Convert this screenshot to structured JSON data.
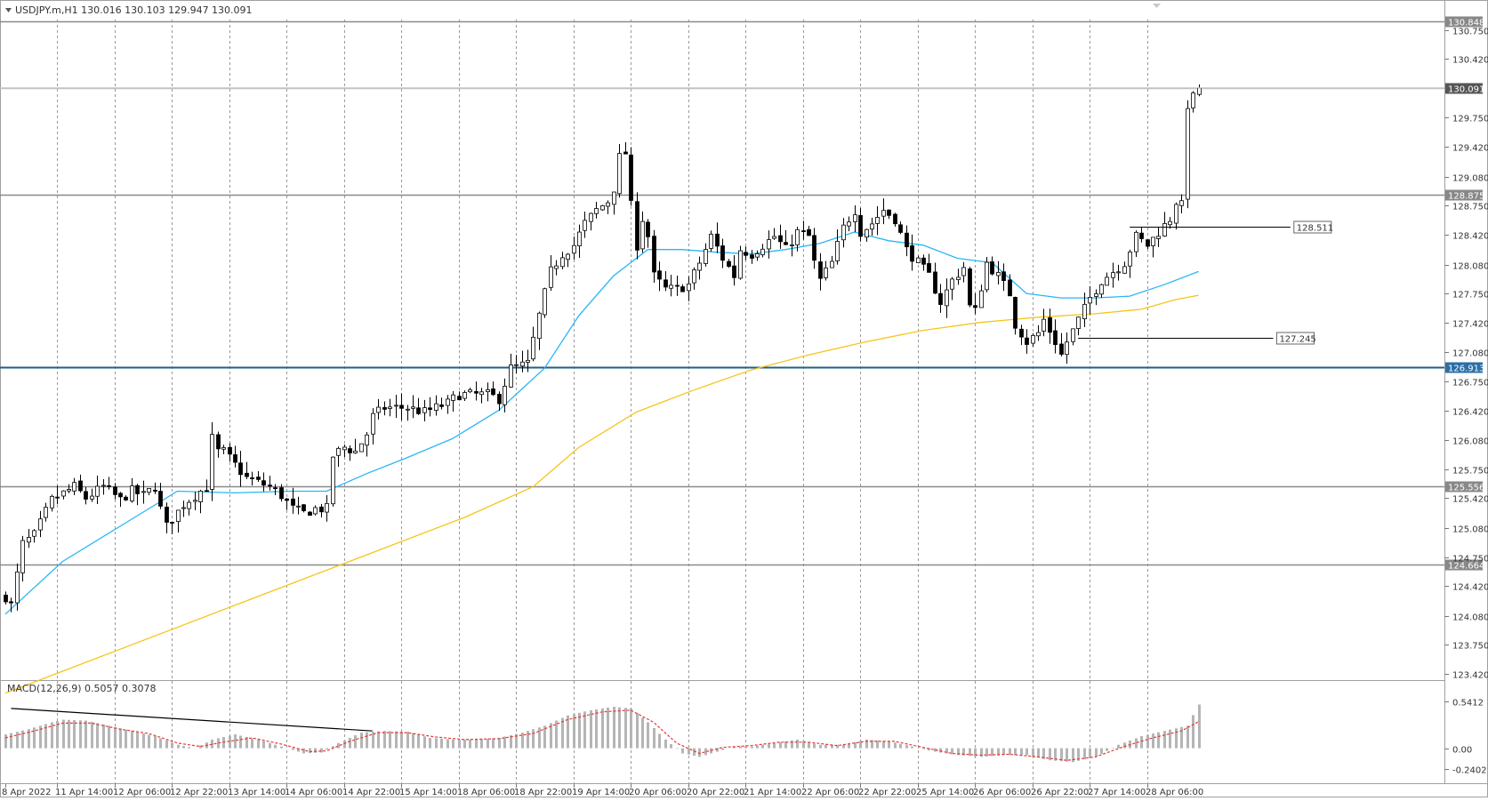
{
  "window": {
    "symbol_line": "USDJPY.m,H1  130.016 130.103 129.947 130.091",
    "collapse_icon": "triangle-down-icon"
  },
  "chart_data": [
    {
      "type": "candlestick",
      "title": "USDJPY.m,H1  130.016 130.103 129.947 130.091",
      "ylim": [
        123.42,
        130.848
      ],
      "y_tick_labels": [
        "130.750",
        "130.420",
        "129.750",
        "129.420",
        "129.080",
        "128.750",
        "128.420",
        "128.080",
        "127.750",
        "127.420",
        "127.080",
        "126.750",
        "126.420",
        "126.080",
        "125.750",
        "125.420",
        "125.080",
        "124.750",
        "124.420",
        "124.080",
        "123.750",
        "123.420"
      ],
      "x_tick_labels": [
        "8 Apr 2022",
        "11 Apr 14:00",
        "12 Apr 06:00",
        "12 Apr 22:00",
        "13 Apr 14:00",
        "14 Apr 06:00",
        "14 Apr 22:00",
        "15 Apr 14:00",
        "18 Apr 06:00",
        "18 Apr 22:00",
        "19 Apr 14:00",
        "20 Apr 06:00",
        "20 Apr 22:00",
        "21 Apr 14:00",
        "22 Apr 06:00",
        "22 Apr 22:00",
        "25 Apr 14:00",
        "26 Apr 06:00",
        "26 Apr 22:00",
        "27 Apr 14:00",
        "28 Apr 06:00"
      ],
      "grid": true,
      "price_path": [
        [
          0,
          124.3
        ],
        [
          1,
          124.2
        ],
        [
          3,
          124.9
        ],
        [
          5,
          125.0
        ],
        [
          8,
          125.4
        ],
        [
          12,
          125.55
        ],
        [
          14,
          125.42
        ],
        [
          17,
          125.55
        ],
        [
          20,
          125.4
        ],
        [
          22,
          125.5
        ],
        [
          24,
          125.45
        ],
        [
          26,
          125.55
        ],
        [
          27,
          125.3
        ],
        [
          28,
          125.1
        ],
        [
          31,
          125.35
        ],
        [
          34,
          125.5
        ],
        [
          35,
          125.55
        ],
        [
          36,
          126.1
        ],
        [
          37,
          125.95
        ],
        [
          38,
          125.95
        ],
        [
          40,
          125.8
        ],
        [
          42,
          125.65
        ],
        [
          44,
          125.6
        ],
        [
          46,
          125.55
        ],
        [
          48,
          125.45
        ],
        [
          50,
          125.3
        ],
        [
          52,
          125.25
        ],
        [
          54,
          125.3
        ],
        [
          56,
          125.3
        ],
        [
          57,
          125.9
        ],
        [
          59,
          126.0
        ],
        [
          61,
          125.95
        ],
        [
          63,
          126.15
        ],
        [
          64,
          126.35
        ],
        [
          66,
          126.45
        ],
        [
          70,
          126.45
        ],
        [
          73,
          126.4
        ],
        [
          75,
          126.45
        ],
        [
          77,
          126.5
        ],
        [
          79,
          126.6
        ],
        [
          81,
          126.6
        ],
        [
          84,
          126.6
        ],
        [
          86,
          126.55
        ],
        [
          88,
          126.9
        ],
        [
          91,
          126.95
        ],
        [
          93,
          127.5
        ],
        [
          95,
          128.0
        ],
        [
          97,
          128.2
        ],
        [
          99,
          128.3
        ],
        [
          101,
          128.55
        ],
        [
          103,
          128.7
        ],
        [
          105,
          128.8
        ],
        [
          106,
          128.95
        ],
        [
          107,
          129.3
        ],
        [
          108,
          129.35
        ],
        [
          109,
          128.75
        ],
        [
          110,
          128.3
        ],
        [
          111,
          128.6
        ],
        [
          112,
          128.4
        ],
        [
          113,
          127.95
        ],
        [
          115,
          127.8
        ],
        [
          117,
          127.8
        ],
        [
          119,
          127.85
        ],
        [
          121,
          128.1
        ],
        [
          123,
          128.4
        ],
        [
          125,
          128.15
        ],
        [
          127,
          127.95
        ],
        [
          128,
          128.25
        ],
        [
          130,
          128.2
        ],
        [
          132,
          128.3
        ],
        [
          134,
          128.4
        ],
        [
          136,
          128.25
        ],
        [
          138,
          128.45
        ],
        [
          140,
          128.4
        ],
        [
          141,
          128.1
        ],
        [
          142,
          127.9
        ],
        [
          144,
          128.1
        ],
        [
          146,
          128.5
        ],
        [
          148,
          128.7
        ],
        [
          149,
          128.45
        ],
        [
          151,
          128.55
        ],
        [
          153,
          128.7
        ],
        [
          155,
          128.6
        ],
        [
          157,
          128.25
        ],
        [
          159,
          128.1
        ],
        [
          161,
          127.95
        ],
        [
          163,
          127.65
        ],
        [
          165,
          127.9
        ],
        [
          167,
          128.05
        ],
        [
          168,
          127.6
        ],
        [
          169,
          127.55
        ],
        [
          171,
          128.1
        ],
        [
          173,
          127.95
        ],
        [
          175,
          127.75
        ],
        [
          176,
          127.4
        ],
        [
          178,
          127.2
        ],
        [
          180,
          127.3
        ],
        [
          181,
          127.45
        ],
        [
          183,
          127.2
        ],
        [
          184,
          127.05
        ],
        [
          185,
          127.2
        ],
        [
          187,
          127.45
        ],
        [
          189,
          127.7
        ],
        [
          191,
          127.9
        ],
        [
          193,
          128.0
        ],
        [
          195,
          128.1
        ],
        [
          197,
          128.4
        ],
        [
          199,
          128.3
        ],
        [
          201,
          128.45
        ],
        [
          203,
          128.6
        ],
        [
          204,
          128.8
        ],
        [
          205,
          128.75
        ],
        [
          206,
          129.9
        ],
        [
          207,
          129.98
        ],
        [
          208,
          130.091
        ]
      ],
      "series": [
        {
          "values": [],
          "color": "#29B6F6",
          "path": [
            [
              0,
              124.1
            ],
            [
              10,
              124.7
            ],
            [
              20,
              125.1
            ],
            [
              30,
              125.5
            ],
            [
              40,
              125.48
            ],
            [
              50,
              125.5
            ],
            [
              56,
              125.5
            ],
            [
              63,
              125.7
            ],
            [
              70,
              125.88
            ],
            [
              78,
              126.1
            ],
            [
              86,
              126.42
            ],
            [
              94,
              126.9
            ],
            [
              100,
              127.5
            ],
            [
              106,
              127.95
            ],
            [
              112,
              128.25
            ],
            [
              118,
              128.25
            ],
            [
              124,
              128.22
            ],
            [
              130,
              128.2
            ],
            [
              136,
              128.25
            ],
            [
              142,
              128.32
            ],
            [
              148,
              128.45
            ],
            [
              154,
              128.35
            ],
            [
              160,
              128.3
            ],
            [
              166,
              128.15
            ],
            [
              172,
              128.1
            ],
            [
              178,
              127.75
            ],
            [
              184,
              127.7
            ],
            [
              190,
              127.7
            ],
            [
              196,
              127.72
            ],
            [
              202,
              127.85
            ],
            [
              208,
              128.0
            ]
          ]
        },
        {
          "values": [],
          "color": "#F5C518",
          "path": [
            [
              0,
              123.2
            ],
            [
              20,
              123.7
            ],
            [
              40,
              124.2
            ],
            [
              60,
              124.7
            ],
            [
              80,
              125.2
            ],
            [
              92,
              125.55
            ],
            [
              100,
              126.0
            ],
            [
              110,
              126.4
            ],
            [
              120,
              126.65
            ],
            [
              130,
              126.88
            ],
            [
              140,
              127.05
            ],
            [
              150,
              127.2
            ],
            [
              160,
              127.33
            ],
            [
              170,
              127.42
            ],
            [
              180,
              127.48
            ],
            [
              190,
              127.52
            ],
            [
              198,
              127.57
            ],
            [
              204,
              127.68
            ],
            [
              208,
              127.73
            ]
          ]
        }
      ],
      "horizontal_levels": [
        {
          "price": 130.848,
          "label": "130.848",
          "color": "#8a8a8a",
          "label_bg": "#888888"
        },
        {
          "price": 130.091,
          "label": "130.091",
          "color": "#bdbdbd",
          "label_bg": "#555555"
        },
        {
          "price": 128.875,
          "label": "128.875",
          "color": "#8a8a8a",
          "label_bg": "#888888"
        },
        {
          "price": 126.913,
          "label": "126.913",
          "color": "#1f5f8b",
          "label_bg": "#2a6fa8"
        },
        {
          "price": 125.556,
          "label": "125.556",
          "color": "#8a8a8a",
          "label_bg": "#888888"
        },
        {
          "price": 124.664,
          "label": "124.664",
          "color": "#8a8a8a",
          "label_bg": "#888888"
        }
      ],
      "annotations": [
        {
          "price": 128.511,
          "label": "128.511",
          "from_bar": 196,
          "to_bar": 224
        },
        {
          "price": 127.245,
          "label": "127.245",
          "from_bar": 187,
          "to_bar": 221
        }
      ]
    },
    {
      "type": "histogram",
      "title": "MACD(12,26,9) 0.5057 0.3078",
      "ylim": [
        -0.2402,
        0.5412
      ],
      "y_tick_labels": [
        "0.5412",
        "0.00",
        "-0.2402"
      ],
      "histogram_path": [
        [
          0,
          0.16
        ],
        [
          4,
          0.22
        ],
        [
          8,
          0.3
        ],
        [
          10,
          0.33
        ],
        [
          14,
          0.32
        ],
        [
          18,
          0.26
        ],
        [
          22,
          0.2
        ],
        [
          26,
          0.14
        ],
        [
          30,
          0.04
        ],
        [
          33,
          0.0
        ],
        [
          36,
          0.1
        ],
        [
          40,
          0.16
        ],
        [
          44,
          0.1
        ],
        [
          48,
          0.02
        ],
        [
          52,
          -0.06
        ],
        [
          55,
          -0.05
        ],
        [
          58,
          0.06
        ],
        [
          62,
          0.18
        ],
        [
          66,
          0.2
        ],
        [
          70,
          0.19
        ],
        [
          74,
          0.12
        ],
        [
          78,
          0.1
        ],
        [
          82,
          0.1
        ],
        [
          86,
          0.12
        ],
        [
          90,
          0.18
        ],
        [
          94,
          0.26
        ],
        [
          98,
          0.38
        ],
        [
          102,
          0.44
        ],
        [
          106,
          0.48
        ],
        [
          109,
          0.46
        ],
        [
          112,
          0.3
        ],
        [
          115,
          0.1
        ],
        [
          118,
          -0.06
        ],
        [
          121,
          -0.1
        ],
        [
          124,
          -0.04
        ],
        [
          127,
          0.02
        ],
        [
          130,
          0.02
        ],
        [
          134,
          0.06
        ],
        [
          138,
          0.1
        ],
        [
          142,
          0.04
        ],
        [
          146,
          0.04
        ],
        [
          150,
          0.1
        ],
        [
          154,
          0.08
        ],
        [
          158,
          0.02
        ],
        [
          162,
          -0.04
        ],
        [
          166,
          -0.08
        ],
        [
          170,
          -0.1
        ],
        [
          174,
          -0.08
        ],
        [
          178,
          -0.08
        ],
        [
          182,
          -0.14
        ],
        [
          186,
          -0.16
        ],
        [
          190,
          -0.1
        ],
        [
          194,
          0.04
        ],
        [
          198,
          0.14
        ],
        [
          202,
          0.2
        ],
        [
          206,
          0.26
        ],
        [
          208,
          0.5057
        ]
      ],
      "signal_path": [
        [
          0,
          0.12
        ],
        [
          5,
          0.2
        ],
        [
          10,
          0.29
        ],
        [
          15,
          0.29
        ],
        [
          20,
          0.22
        ],
        [
          25,
          0.17
        ],
        [
          30,
          0.06
        ],
        [
          34,
          0.02
        ],
        [
          38,
          0.07
        ],
        [
          43,
          0.12
        ],
        [
          48,
          0.05
        ],
        [
          53,
          -0.04
        ],
        [
          56,
          -0.03
        ],
        [
          60,
          0.08
        ],
        [
          65,
          0.18
        ],
        [
          70,
          0.18
        ],
        [
          75,
          0.13
        ],
        [
          80,
          0.1
        ],
        [
          86,
          0.11
        ],
        [
          92,
          0.17
        ],
        [
          98,
          0.33
        ],
        [
          104,
          0.42
        ],
        [
          109,
          0.44
        ],
        [
          113,
          0.3
        ],
        [
          117,
          0.06
        ],
        [
          121,
          -0.06
        ],
        [
          125,
          0.01
        ],
        [
          130,
          0.03
        ],
        [
          135,
          0.07
        ],
        [
          140,
          0.07
        ],
        [
          145,
          0.03
        ],
        [
          150,
          0.08
        ],
        [
          155,
          0.08
        ],
        [
          160,
          0.01
        ],
        [
          165,
          -0.06
        ],
        [
          170,
          -0.08
        ],
        [
          175,
          -0.07
        ],
        [
          180,
          -0.1
        ],
        [
          185,
          -0.14
        ],
        [
          190,
          -0.1
        ],
        [
          195,
          0.02
        ],
        [
          200,
          0.12
        ],
        [
          205,
          0.2
        ],
        [
          208,
          0.3078
        ]
      ],
      "histogram_color": "#b5b5b5",
      "signal_color": "#e53935"
    }
  ]
}
